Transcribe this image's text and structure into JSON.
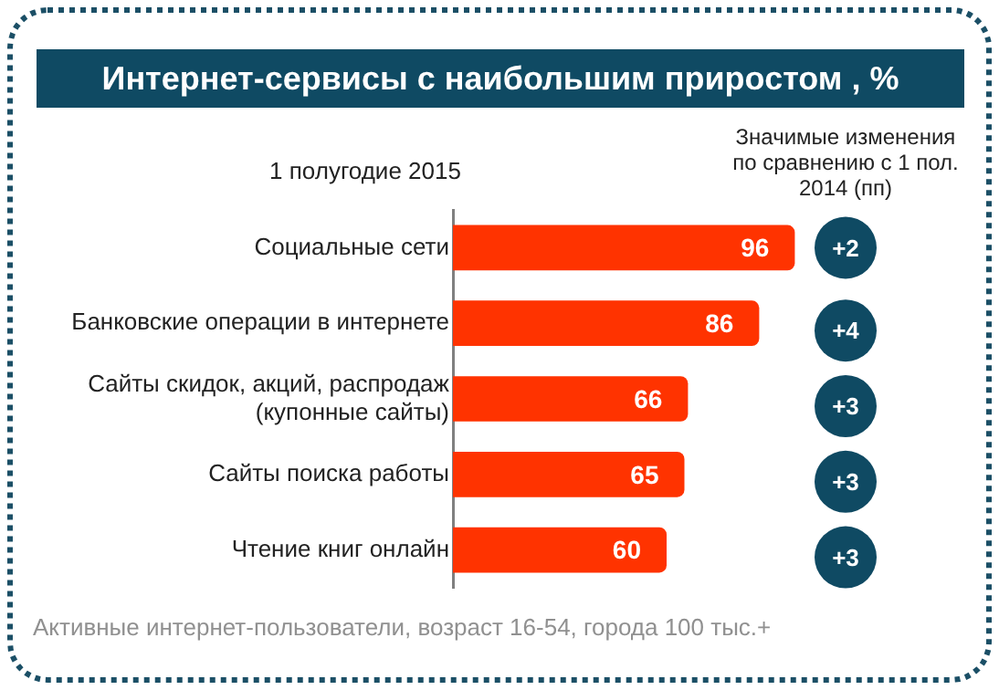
{
  "chart_data": {
    "type": "bar",
    "orientation": "horizontal",
    "title": "Интернет-сервисы с наибольшим приростом , %",
    "subtitle": "1 полугодие 2015",
    "categories": [
      "Социальные сети",
      "Банковские операции в интернете",
      "Сайты скидок, акций, распродаж (купонные сайты)",
      "Сайты поиска работы",
      "Чтение книг онлайн"
    ],
    "values": [
      96,
      86,
      66,
      65,
      60
    ],
    "color": "#ff3300",
    "tick_labels": "y",
    "data_labels": true,
    "annotations": [
      "Значимые изменения по сравнению с 1 пол. 2014 (пп)",
      "+2",
      "+4",
      "+3",
      "+3",
      "+3",
      "Активные интернет-пользователи, возраст 16-54, города 100 тыс.+"
    ]
  }
}
